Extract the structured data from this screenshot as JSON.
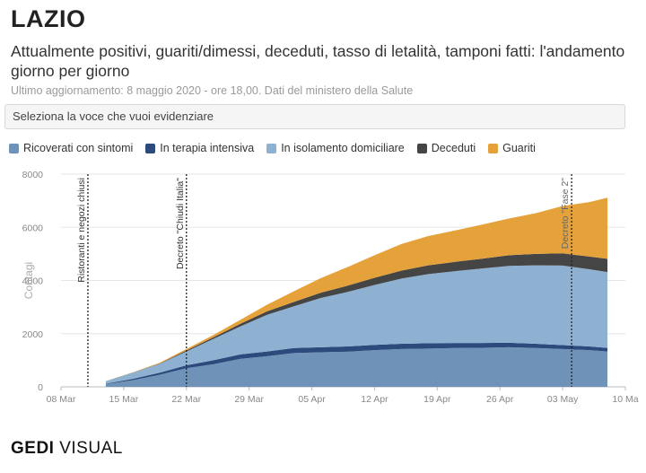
{
  "header": {
    "title": "LAZIO",
    "subtitle": "Attualmente positivi, guariti/dimessi, deceduti, tasso di letalità, tamponi fatti: l'andamento giorno per giorno",
    "updated": "Ultimo aggiornamento: 8 maggio 2020 - ore 18,00. Dati del ministero della Salute"
  },
  "selector": {
    "placeholder": "Seleziona la voce che vuoi evidenziare"
  },
  "branding": {
    "logo_bold": "GEDI",
    "logo_light": "VISUAL"
  },
  "chart_data": {
    "type": "area",
    "stacked": true,
    "ylabel": "Contagi",
    "ylim": [
      0,
      8000
    ],
    "yticks": [
      0,
      2000,
      4000,
      6000,
      8000
    ],
    "xlim": [
      "2020-03-08",
      "2020-05-10"
    ],
    "xticks": [
      "08 Mar",
      "15 Mar",
      "22 Mar",
      "29 Mar",
      "05 Apr",
      "12 Apr",
      "19 Apr",
      "26 Apr",
      "03 May",
      "10 Ma"
    ],
    "grid": "horizontal",
    "legend_position": "top-left",
    "x": [
      "2020-03-13",
      "2020-03-16",
      "2020-03-19",
      "2020-03-22",
      "2020-03-25",
      "2020-03-28",
      "2020-03-31",
      "2020-04-03",
      "2020-04-06",
      "2020-04-09",
      "2020-04-12",
      "2020-04-15",
      "2020-04-18",
      "2020-04-21",
      "2020-04-24",
      "2020-04-27",
      "2020-04-30",
      "2020-05-03",
      "2020-05-06",
      "2020-05-08"
    ],
    "series": [
      {
        "name": "Ricoverati con sintomi",
        "color": "#6f93b8",
        "values": [
          100,
          250,
          450,
          700,
          850,
          1050,
          1150,
          1270,
          1300,
          1320,
          1380,
          1420,
          1440,
          1460,
          1470,
          1490,
          1460,
          1420,
          1380,
          1330
        ]
      },
      {
        "name": "In terapia intensiva",
        "color": "#2c4a7c",
        "values": [
          20,
          50,
          80,
          110,
          150,
          170,
          180,
          190,
          190,
          200,
          200,
          200,
          200,
          190,
          180,
          170,
          160,
          150,
          140,
          135
        ]
      },
      {
        "name": "In isolamento domiciliare",
        "color": "#8fb1d1",
        "values": [
          90,
          230,
          330,
          520,
          800,
          1050,
          1380,
          1570,
          1850,
          2050,
          2250,
          2450,
          2600,
          2700,
          2800,
          2890,
          2950,
          2990,
          2900,
          2850
        ]
      },
      {
        "name": "Deceduti",
        "color": "#454545",
        "values": [
          2,
          6,
          15,
          35,
          60,
          95,
          130,
          165,
          200,
          235,
          270,
          300,
          330,
          350,
          370,
          400,
          430,
          460,
          480,
          500
        ]
      },
      {
        "name": "Guariti",
        "color": "#e6a23a",
        "values": [
          3,
          10,
          30,
          55,
          90,
          150,
          250,
          400,
          550,
          700,
          850,
          1000,
          1100,
          1180,
          1280,
          1380,
          1530,
          1780,
          2050,
          2300
        ]
      }
    ],
    "annotations": [
      {
        "date": "2020-03-11",
        "label": "Ristoranti e negozi chiusi"
      },
      {
        "date": "2020-03-22",
        "label": "Decreto \"Chiudi Italia\""
      },
      {
        "date": "2020-05-04",
        "label": "Decreto \"Fase 2\""
      }
    ]
  }
}
